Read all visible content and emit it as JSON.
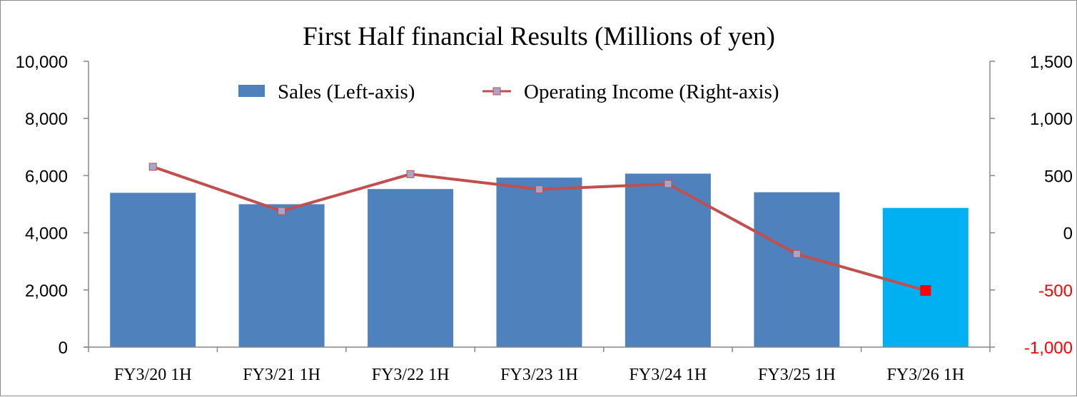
{
  "colors": {
    "sales": "#4f81bd",
    "sales_highlight": "#00b0f0",
    "income_line": "#c0504d",
    "income_marker": "#a6a6c8",
    "income_marker_highlight": "#ff0000",
    "negative_tick": "#ff0000",
    "axis": "#868686"
  },
  "chart_data": {
    "type": "bar",
    "title": "First Half financial Results (Millions of yen)",
    "categories": [
      "FY3/20 1H",
      "FY3/21 1H",
      "FY3/22 1H",
      "FY3/23 1H",
      "FY3/24 1H",
      "FY3/25 1H",
      "FY3/26 1H"
    ],
    "series": [
      {
        "name": "Sales (Left-axis)",
        "type": "bar",
        "axis": "left",
        "values": [
          5400,
          5000,
          5530,
          5930,
          6070,
          5420,
          4870
        ],
        "highlight_index": 6
      },
      {
        "name": "Operating Income (Right-axis)",
        "type": "line",
        "axis": "right",
        "values": [
          577,
          190,
          513,
          380,
          427,
          -185,
          -505
        ],
        "highlight_index": 6
      }
    ],
    "y_left": {
      "min": 0,
      "max": 10000,
      "step": 2000,
      "tick_labels": [
        "0",
        "2,000",
        "4,000",
        "6,000",
        "8,000",
        "10,000"
      ]
    },
    "y_right": {
      "min": -1000,
      "max": 1500,
      "step": 500,
      "tick_labels": [
        "-1,000",
        "-500",
        "0",
        "500",
        "1,000",
        "1,500"
      ],
      "negative_ticks_red": true
    },
    "grid": false,
    "legend_placement": "top-center"
  }
}
